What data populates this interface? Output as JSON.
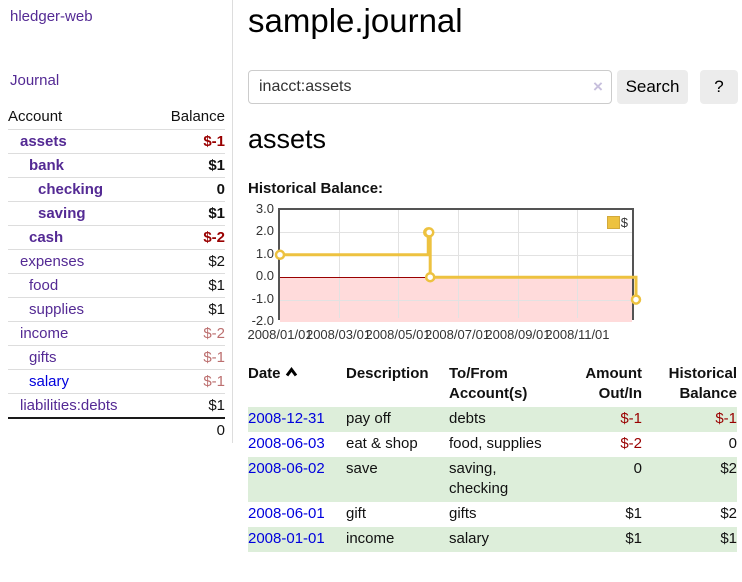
{
  "sidebar": {
    "brand": "hledger-web",
    "journal_link": "Journal",
    "accounts": {
      "account_header": "Account",
      "balance_header": "Balance",
      "rows": [
        {
          "name": "assets",
          "balance": "$-1",
          "depth": 1,
          "bold": true
        },
        {
          "name": "bank",
          "balance": "$1",
          "depth": 2,
          "bold": true
        },
        {
          "name": "checking",
          "balance": "0",
          "depth": 3,
          "bold": true
        },
        {
          "name": "saving",
          "balance": "$1",
          "depth": 3,
          "bold": true
        },
        {
          "name": "cash",
          "balance": "$-2",
          "depth": 2,
          "bold": true
        },
        {
          "name": "expenses",
          "balance": "$2",
          "depth": 1,
          "bold": false
        },
        {
          "name": "food",
          "balance": "$1",
          "depth": 2,
          "bold": false
        },
        {
          "name": "supplies",
          "balance": "$1",
          "depth": 2,
          "bold": false
        },
        {
          "name": "income",
          "balance": "$-2",
          "depth": 1,
          "bold": false
        },
        {
          "name": "gifts",
          "balance": "$-1",
          "depth": 2,
          "bold": false
        },
        {
          "name": "salary",
          "balance": "$-1",
          "depth": 2,
          "bold": false,
          "blue_link": true
        },
        {
          "name": "liabilities:debts",
          "balance": "$1",
          "depth": 1,
          "bold": false
        }
      ],
      "total": "0"
    }
  },
  "header": {
    "title": "sample.journal"
  },
  "search": {
    "value": "inacct:assets",
    "clear_icon": "×",
    "button_label": "Search",
    "help_label": "?"
  },
  "account_page": {
    "heading": "assets",
    "chart_title": "Historical Balance:"
  },
  "chart_data": {
    "type": "line",
    "steps": true,
    "title": "Historical Balance",
    "series": [
      {
        "name": "$",
        "color": "#edc240",
        "points": [
          {
            "date": "2008-01-01",
            "value": 1
          },
          {
            "date": "2008-06-01",
            "value": 2
          },
          {
            "date": "2008-06-02",
            "value": 2
          },
          {
            "date": "2008-06-03",
            "value": 0
          },
          {
            "date": "2008-12-31",
            "value": -1
          }
        ]
      }
    ],
    "x_ticks": [
      "2008/01/01",
      "2008/03/01",
      "2008/05/01",
      "2008/07/01",
      "2008/09/01",
      "2008/11/01"
    ],
    "y_ticks": [
      "3.0",
      "2.0",
      "1.0",
      "0.0",
      "-1.0",
      "-2.0"
    ],
    "ylim": [
      -2,
      3
    ],
    "xlim": [
      "2008-01-01",
      "2008-12-31"
    ],
    "grid": true,
    "negative_region_color": "#ffdbdb",
    "zero_line_color": "#990000",
    "legend": {
      "label": "$",
      "position": "top-right"
    }
  },
  "register": {
    "columns": [
      "Date",
      "Description",
      "To/From Account(s)",
      "Amount Out/In",
      "Historical Balance"
    ],
    "sort": {
      "column": "Date",
      "direction": "asc"
    },
    "rows": [
      {
        "date": "2008-12-31",
        "description": "pay off",
        "accounts": "debts",
        "amount": "$-1",
        "balance": "$-1"
      },
      {
        "date": "2008-06-03",
        "description": "eat & shop",
        "accounts": "food, supplies",
        "amount": "$-2",
        "balance": "0"
      },
      {
        "date": "2008-06-02",
        "description": "save",
        "accounts": "saving,\nchecking",
        "amount": "0",
        "balance": "$2"
      },
      {
        "date": "2008-06-01",
        "description": "gift",
        "accounts": "gifts",
        "amount": "$1",
        "balance": "$2"
      },
      {
        "date": "2008-01-01",
        "description": "income",
        "accounts": "salary",
        "amount": "$1",
        "balance": "$1"
      }
    ]
  }
}
